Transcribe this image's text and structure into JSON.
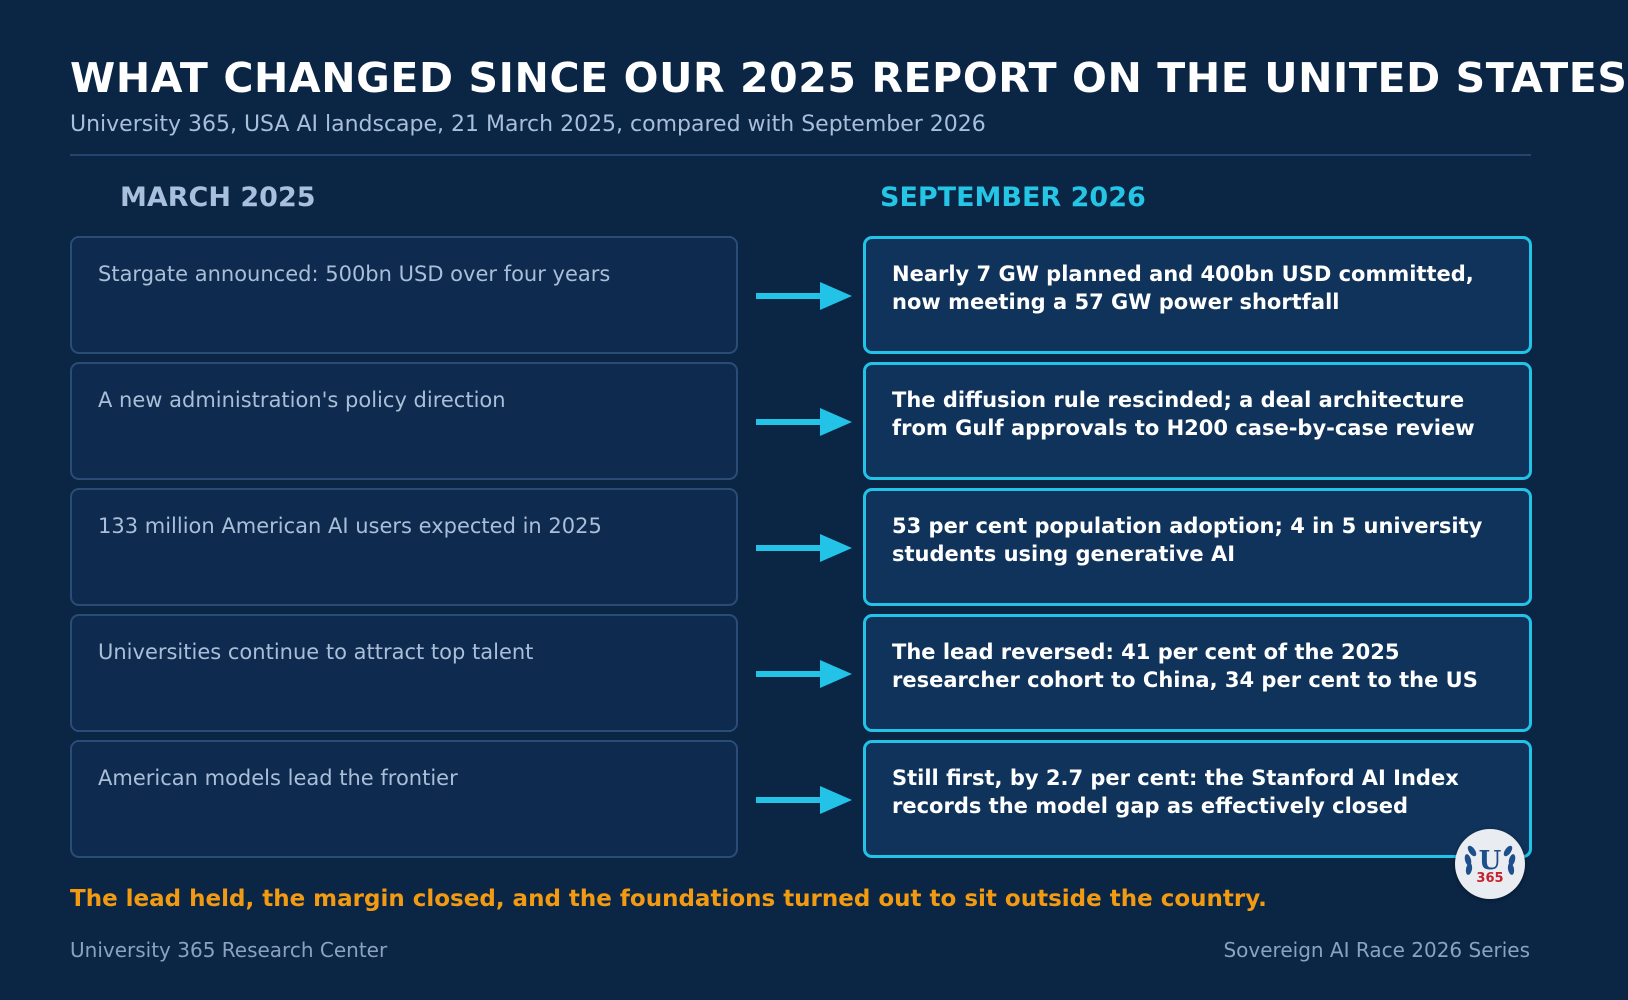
{
  "header": {
    "title": "WHAT CHANGED SINCE OUR 2025 REPORT ON THE UNITED STATES",
    "subtitle": "University 365, USA AI landscape, 21 March 2025, compared with September 2026"
  },
  "columns": {
    "left_heading": "MARCH 2025",
    "right_heading": "SEPTEMBER 2026"
  },
  "rows": [
    {
      "before": "Stargate announced: 500bn USD over four years",
      "after": "Nearly 7 GW planned and 400bn USD committed, now meeting a 57 GW power shortfall"
    },
    {
      "before": "A new administration's policy direction",
      "after": "The diffusion rule rescinded; a deal architecture from Gulf approvals to H200 case-by-case review"
    },
    {
      "before": "133 million American AI users expected in 2025",
      "after": "53 per cent population adoption; 4 in 5 university students using generative AI"
    },
    {
      "before": "Universities continue to attract top talent",
      "after": "The lead reversed: 41 per cent of the 2025 researcher cohort to China, 34 per cent to the US"
    },
    {
      "before": "American models lead the frontier",
      "after": "Still first, by 2.7 per cent: the Stanford AI Index records the model gap as effectively closed"
    }
  ],
  "logo": {
    "letter": "U",
    "number": "365"
  },
  "tagline": "The lead held, the margin closed, and the foundations turned out to sit outside the country.",
  "footer": {
    "left": "University 365 Research Center",
    "right": "Sovereign AI Race 2026 Series"
  },
  "colors": {
    "background": "#0b2545",
    "accent_cyan": "#22c3e6",
    "accent_orange": "#f29b12",
    "muted_text": "#a9bfd9"
  },
  "icons": {
    "arrow": "arrow-right-icon",
    "logo": "university-365-laurel-logo"
  }
}
